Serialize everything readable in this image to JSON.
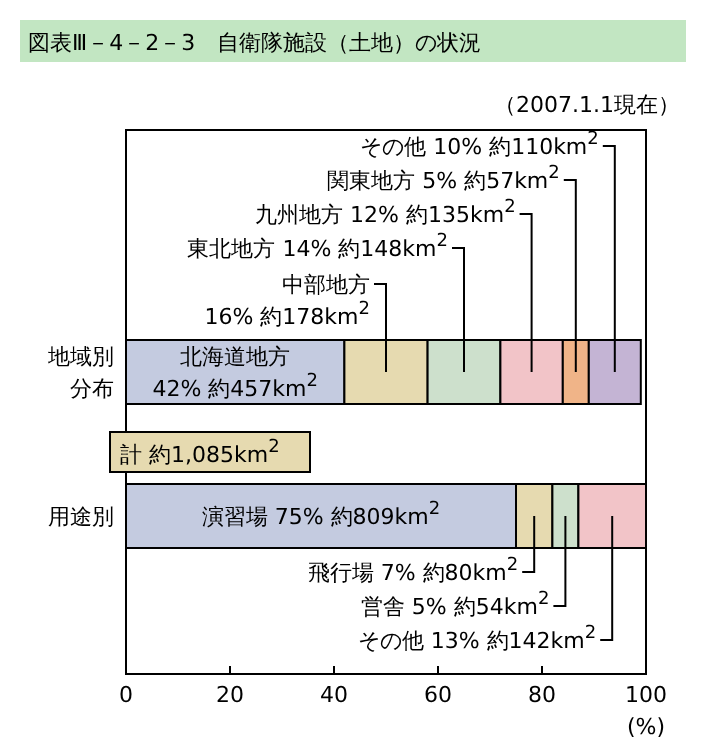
{
  "chart_data": {
    "type": "bar",
    "orientation": "horizontal",
    "stacked": true,
    "title": "図表Ⅲ－4－2－3　自衛隊施設（土地）の状況",
    "categories": [
      "地域別分布",
      "用途別"
    ],
    "series": [
      {
        "color": "#c4cbe0",
        "values": [
          42,
          75
        ],
        "value_labels": [
          "北海道地方\n42% 約457km$^{2}$",
          "演習場 75% 約809km$^{2}$"
        ]
      },
      {
        "color": "#e6dab0",
        "values": [
          16,
          7
        ],
        "value_labels": [
          "中部地方\n16% 約178km$^{2}$",
          "飛行場 7% 約80km$^{2}$"
        ]
      },
      {
        "color": "#cde0cc",
        "values": [
          14,
          5
        ],
        "value_labels": [
          "東北地方 14% 約148km$^{2}$",
          "営舎 5% 約54km$^{2}$"
        ]
      },
      {
        "color": "#f2c4c8",
        "values": [
          12,
          13
        ],
        "value_labels": [
          "九州地方 12% 約135km$^{2}$",
          "その他 13% 約142km$^{2}$"
        ]
      },
      {
        "color": "#f0b488",
        "values": [
          5,
          null
        ],
        "value_labels": [
          "関東地方 5% 約57km$^{2}$",
          null
        ]
      },
      {
        "color": "#c4b4d4",
        "values": [
          10,
          null
        ],
        "value_labels": [
          "その他 10% 約110km$^{2}$",
          null
        ]
      }
    ],
    "xlim": [
      0,
      100
    ],
    "xticks": [
      0,
      20,
      40,
      60,
      80,
      100
    ],
    "xlabel": "(%)",
    "annotations": [
      "（2007.1.1現在）",
      "計 約1,085km$^{2}$"
    ],
    "grid": false
  }
}
